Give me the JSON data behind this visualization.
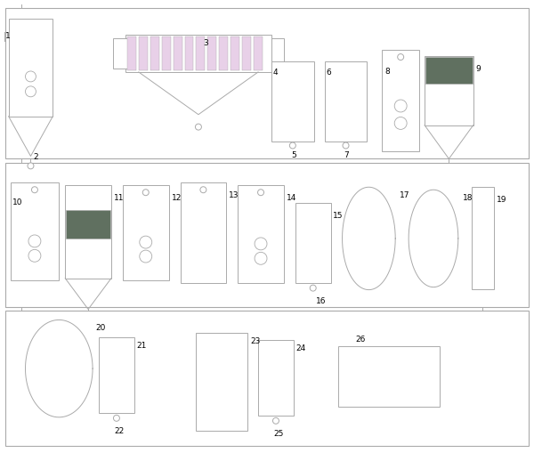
{
  "fig_width": 6.0,
  "fig_height": 5.09,
  "dpi": 100,
  "lc": "#aaaaaa",
  "pink": "#e8d0e8",
  "green": "#607060",
  "lw": 0.7
}
